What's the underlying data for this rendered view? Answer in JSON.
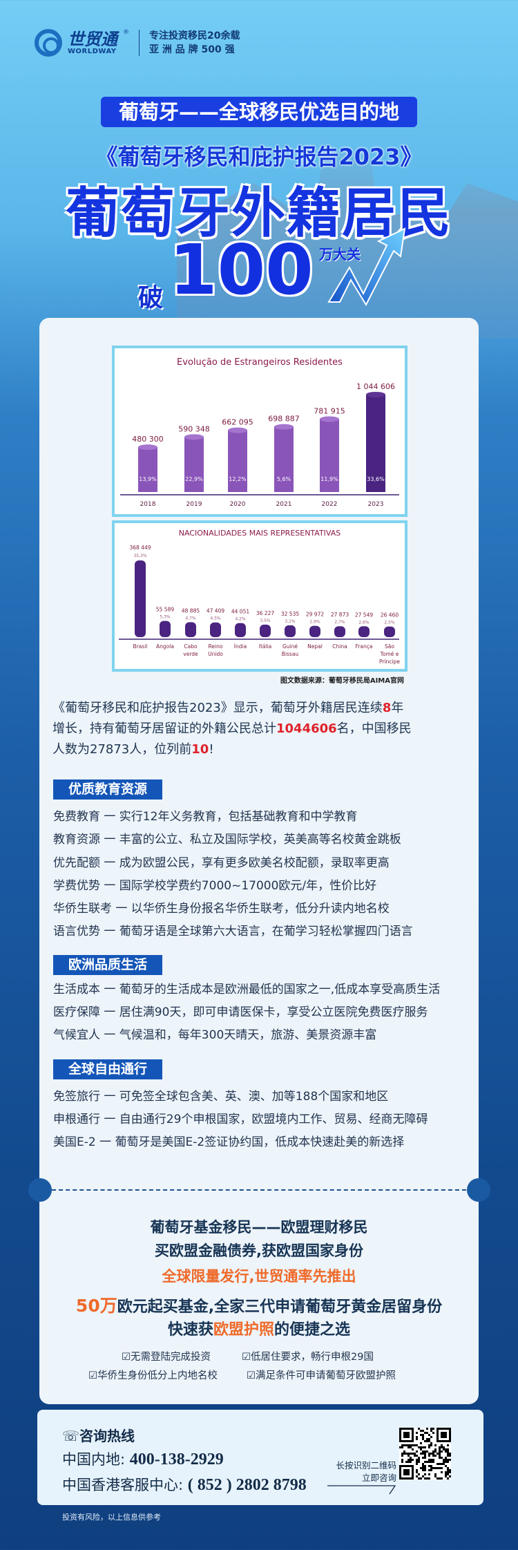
{
  "brand": {
    "name_cn": "世贸通",
    "name_en": "WORLDWAY",
    "registered": "®",
    "tagline1": "专注投资移民20余载",
    "tagline2": "亚 洲 品 牌 500 强"
  },
  "hero": {
    "banner": "葡萄牙——全球移民优选目的地",
    "report": "《葡萄牙移民和庇护报告2023》",
    "title": "葡萄牙外籍居民",
    "break": "破",
    "number": "100",
    "unit": "万大关"
  },
  "chart_data": [
    {
      "type": "bar",
      "title": "Evolução de Estrangeiros Residentes",
      "categories": [
        "2018",
        "2019",
        "2020",
        "2021",
        "2022",
        "2023"
      ],
      "values": [
        480300,
        590348,
        662095,
        698887,
        781915,
        1044606
      ],
      "value_labels": [
        "480 300",
        "590 348",
        "662 095",
        "698 887",
        "781 915",
        "1 044 606"
      ],
      "growth_labels": [
        "13,9%",
        "22,9%",
        "12,2%",
        "5,6%",
        "11,9%",
        "33,6%"
      ],
      "colors": {
        "bar": "#8a55b8",
        "highlight": "#4a2480",
        "title": "#8b1a4a"
      }
    },
    {
      "type": "bar",
      "title": "NACIONALIDADES MAIS REPRESENTATIVAS",
      "categories": [
        [
          "Brasil"
        ],
        [
          "Angola"
        ],
        [
          "Cabo",
          "verde"
        ],
        [
          "Reino",
          "Unido"
        ],
        [
          "Índia"
        ],
        [
          "Itália"
        ],
        [
          "Guiné",
          "Bissau"
        ],
        [
          "Nepal"
        ],
        [
          "China"
        ],
        [
          "França"
        ],
        [
          "São",
          "Tomé e",
          "Príncipe"
        ]
      ],
      "values": [
        368449,
        55589,
        48885,
        47409,
        44051,
        36227,
        32535,
        29972,
        27873,
        27549,
        26460
      ],
      "value_labels": [
        "368 449",
        "55 589",
        "48 885",
        "47 409",
        "44 051",
        "36 227",
        "32 535",
        "29 972",
        "27 873",
        "27 549",
        "26 460"
      ],
      "share_labels": [
        "35,3%",
        "5,3%",
        "4,7%",
        "4,5%",
        "4,2%",
        "3,5%",
        "3,1%",
        "2,9%",
        "2,7%",
        "2,6%",
        "2,5%"
      ],
      "colors": {
        "bar": "#4a2480",
        "title": "#8b1a4a"
      }
    }
  ],
  "source": "图文数据来源：葡萄牙移民局AIMA官网",
  "intro": {
    "line1": [
      "《葡萄牙移民和庇护报告2023》显示，葡萄牙外籍居民连续",
      "8",
      "年"
    ],
    "line2": [
      "增长，持有葡萄牙居留证的外籍公民总计",
      "1044606",
      "名，中国移民"
    ],
    "line3": [
      "人数为27873人，位列前",
      "10",
      "!"
    ]
  },
  "sections": [
    {
      "title": "优质教育资源",
      "items": [
        "免费教育 一 实行12年义务教育，包括基础教育和中学教育",
        "教育资源 一 丰富的公立、私立及国际学校，英美高等名校黄金跳板",
        "优先配额 一 成为欧盟公民，享有更多欧美名校配额，录取率更高",
        "学费优势 一 国际学校学费约7000~17000欧元/年，性价比好",
        "华侨生联考 一 以华侨生身份报名华侨生联考，低分升读内地名校",
        "语言优势 一 葡萄牙语是全球第六大语言，在葡学习轻松掌握四门语言"
      ]
    },
    {
      "title": "欧洲品质生活",
      "items": [
        "生活成本 一 葡萄牙的生活成本是欧洲最低的国家之一,低成本享受高质生活",
        "医疗保障 一 居住满90天，即可申请医保卡，享受公立医院免费医疗服务",
        "气候宜人 一 气候温和，每年300天晴天，旅游、美景资源丰富"
      ]
    },
    {
      "title": "全球自由通行",
      "items": [
        "免签旅行 一 可免签全球包含美、英、澳、加等188个国家和地区",
        "申根通行 一 自由通行29个申根国家，欧盟境内工作、贸易、经商无障碍",
        "美国E-2 一 葡萄牙是美国E-2签证协约国，低成本快速赴美的新选择"
      ]
    }
  ],
  "promo": {
    "line1": "葡萄牙基金移民——欧盟理财移民",
    "line2": "买欧盟金融债券,获欧盟国家身份",
    "line3": "全球限量发行,世贸通率先推出",
    "line4_hl": "50万",
    "line4": "欧元起买基金,全家三代申请葡萄牙黄金居留身份",
    "line5_a": "快速获",
    "line5_hl": "欧盟护照",
    "line5_b": "的便捷之选",
    "checks": [
      "无需登陆完成投资",
      "低居住要求，畅行申根29国",
      "华侨生身份低分上内地名校",
      "满足条件可申请葡萄牙欧盟护照"
    ]
  },
  "contact": {
    "title": "咨询热线",
    "mainland_label": "中国内地:",
    "mainland": "400-138-2929",
    "hk_label": "中国香港客服中心:",
    "hk": "( 852 ) 2802  8798",
    "scan1": "长按识别二维码",
    "scan2": "立即咨询"
  },
  "footer": "投资有风险，以上信息供参考",
  "colors": {
    "accent": "#1456b8",
    "highlight_red": "#e0222a",
    "orange": "#ef6a2a",
    "navy": "#0f3f7f"
  }
}
